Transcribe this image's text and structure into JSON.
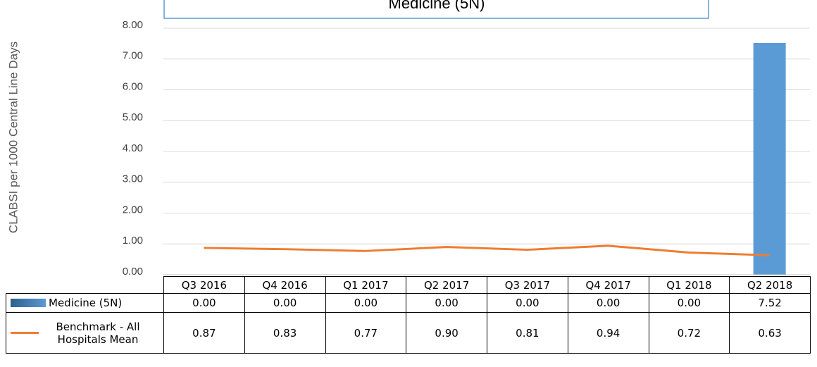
{
  "chart_data": {
    "type": "bar",
    "title": "Medicine (5N)",
    "y_label": "CLABSI per 1000 Central Line Days",
    "categories": [
      "Q3 2016",
      "Q4 2016",
      "Q1 2017",
      "Q2 2017",
      "Q3 2017",
      "Q4 2017",
      "Q1 2018",
      "Q2 2018"
    ],
    "series": [
      {
        "name": "Medicine (5N)",
        "type": "bar",
        "color": "#5b9bd5",
        "values": [
          0,
          0,
          0,
          0,
          0,
          0,
          0,
          7.52
        ],
        "value_labels": [
          "0.00",
          "0.00",
          "0.00",
          "0.00",
          "0.00",
          "0.00",
          "0.00",
          "7.52"
        ]
      },
      {
        "name": "Benchmark - All Hospitals Mean",
        "type": "line",
        "color": "#ed7d31",
        "values": [
          0.87,
          0.83,
          0.77,
          0.9,
          0.81,
          0.94,
          0.72,
          0.63
        ],
        "value_labels": [
          "0.87",
          "0.83",
          "0.77",
          "0.90",
          "0.81",
          "0.94",
          "0.72",
          "0.63"
        ]
      }
    ],
    "ylim": [
      0,
      8
    ],
    "yticks": [
      {
        "value": 0,
        "label": "0.00"
      },
      {
        "value": 1,
        "label": "1.00"
      },
      {
        "value": 2,
        "label": "2.00"
      },
      {
        "value": 3,
        "label": "3.00"
      },
      {
        "value": 4,
        "label": "4.00"
      },
      {
        "value": 5,
        "label": "5.00"
      },
      {
        "value": 6,
        "label": "6.00"
      },
      {
        "value": 7,
        "label": "7.00"
      },
      {
        "value": 8,
        "label": "8.00"
      }
    ],
    "grid": true
  }
}
